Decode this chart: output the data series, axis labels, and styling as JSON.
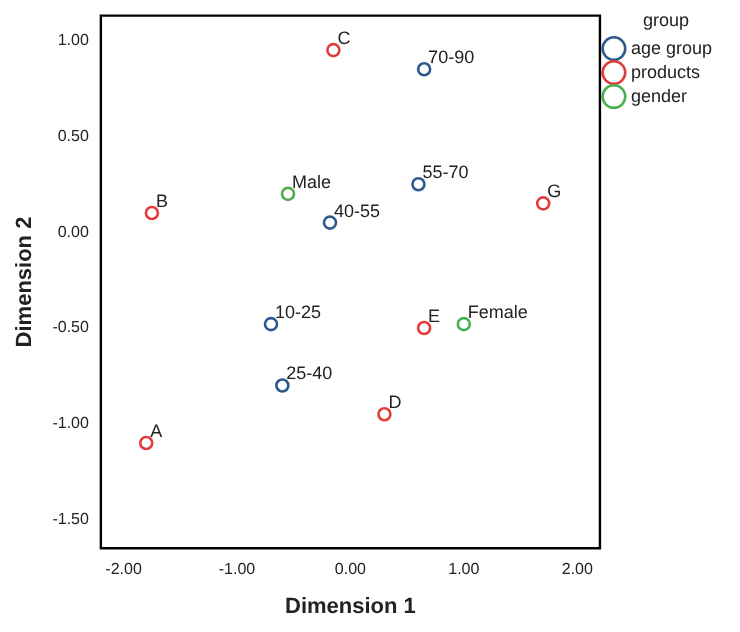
{
  "chart_data": {
    "type": "scatter",
    "xlabel": "Dimension 1",
    "ylabel": "Dimension 2",
    "legend_title": "group",
    "legend": "right",
    "marker": "circle",
    "grid": false,
    "xlim": [
      -2.2,
      2.2
    ],
    "ylim": [
      -1.65,
      1.13
    ],
    "xticks": [
      {
        "value": -2,
        "label": "-2.00"
      },
      {
        "value": -1,
        "label": "-1.00"
      },
      {
        "value": 0,
        "label": "0.00"
      },
      {
        "value": 1,
        "label": "1.00"
      },
      {
        "value": 2,
        "label": "2.00"
      }
    ],
    "yticks": [
      {
        "value": -1.5,
        "label": "-1.50"
      },
      {
        "value": -1,
        "label": "-1.00"
      },
      {
        "value": -0.5,
        "label": "-0.50"
      },
      {
        "value": 0,
        "label": "0.00"
      },
      {
        "value": 0.5,
        "label": "0.50"
      },
      {
        "value": 1,
        "label": "1.00"
      }
    ],
    "series": [
      {
        "name": "age group",
        "color": "#2d5a8c",
        "x": [
          0.65,
          0.6,
          -0.18,
          -0.7,
          -0.6
        ],
        "values": [
          0.85,
          0.25,
          0.05,
          -0.48,
          -0.8
        ]
      },
      {
        "name": "products",
        "color": "#e03c3c",
        "x": [
          -1.8,
          -1.75,
          -0.15,
          0.3,
          0.65,
          1.7
        ],
        "values": [
          -1.1,
          0.1,
          0.95,
          -0.95,
          -0.5,
          0.15
        ]
      },
      {
        "name": "gender",
        "color": "#4caf50",
        "x": [
          -0.55,
          1.0
        ],
        "values": [
          0.2,
          -0.48
        ]
      }
    ],
    "annotations": [
      {
        "text": "70-90",
        "x": 0.65,
        "y": 0.85
      },
      {
        "text": "55-70",
        "x": 0.6,
        "y": 0.25
      },
      {
        "text": "40-55",
        "x": -0.18,
        "y": 0.05
      },
      {
        "text": "10-25",
        "x": -0.7,
        "y": -0.48
      },
      {
        "text": "25-40",
        "x": -0.6,
        "y": -0.8
      },
      {
        "text": "A",
        "x": -1.8,
        "y": -1.1
      },
      {
        "text": "B",
        "x": -1.75,
        "y": 0.1
      },
      {
        "text": "C",
        "x": -0.15,
        "y": 0.95
      },
      {
        "text": "D",
        "x": 0.3,
        "y": -0.95
      },
      {
        "text": "E",
        "x": 0.65,
        "y": -0.5
      },
      {
        "text": "G",
        "x": 1.7,
        "y": 0.15
      },
      {
        "text": "Male",
        "x": -0.55,
        "y": 0.2
      },
      {
        "text": "Female",
        "x": 1.0,
        "y": -0.48
      }
    ]
  }
}
